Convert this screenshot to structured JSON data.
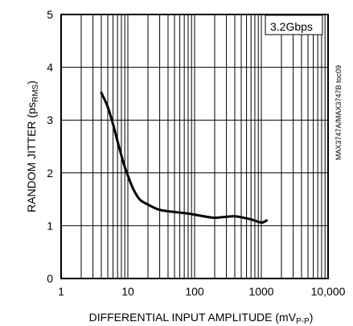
{
  "chart_data": {
    "type": "line",
    "xscale": "log",
    "xlim": [
      1,
      10000
    ],
    "ylim": [
      0,
      5
    ],
    "xticks": [
      "1",
      "10",
      "100",
      "1000",
      "10,000"
    ],
    "yticks": [
      "0",
      "1",
      "2",
      "3",
      "4",
      "5"
    ],
    "xlabel_main": "DIFFERENTIAL INPUT AMPLITUDE (mV",
    "xlabel_sub": "P-P",
    "xlabel_end": ")",
    "ylabel_main": "RANDOM JITTER (ps",
    "ylabel_sub": "RMS",
    "ylabel_end": ")",
    "side_note": "MAX3747A/MAX3747B toc09",
    "grid": true,
    "legend_position": "top-right",
    "series": [
      {
        "name": "3.2Gbps",
        "x": [
          4,
          5,
          6,
          7,
          8,
          9,
          10,
          12,
          15,
          20,
          30,
          50,
          70,
          100,
          150,
          200,
          300,
          400,
          500,
          700,
          1000,
          1200
        ],
        "y": [
          3.52,
          3.25,
          2.92,
          2.6,
          2.33,
          2.11,
          1.95,
          1.7,
          1.5,
          1.4,
          1.3,
          1.26,
          1.24,
          1.21,
          1.17,
          1.15,
          1.17,
          1.18,
          1.16,
          1.12,
          1.06,
          1.1
        ]
      }
    ]
  }
}
